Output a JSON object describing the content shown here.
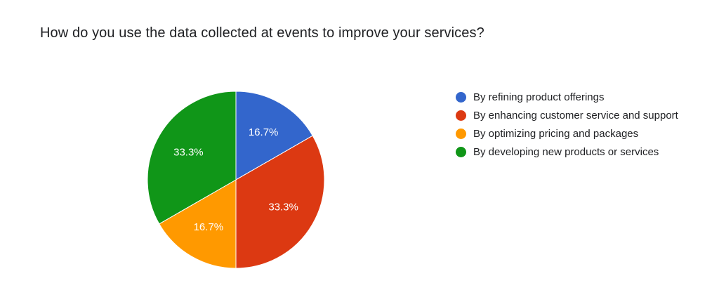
{
  "title": "How do you use the data collected at events to improve your services?",
  "chart_data": {
    "type": "pie",
    "categories": [
      "By refining product offerings",
      "By enhancing customer service and support",
      "By optimizing pricing and packages",
      "By developing new products or services"
    ],
    "values": [
      16.7,
      33.3,
      16.7,
      33.3
    ],
    "value_labels": [
      "16.7%",
      "33.3%",
      "16.7%",
      "33.3%"
    ],
    "colors": [
      "#3366cc",
      "#dc3912",
      "#ff9900",
      "#109618"
    ],
    "legend_position": "right"
  }
}
